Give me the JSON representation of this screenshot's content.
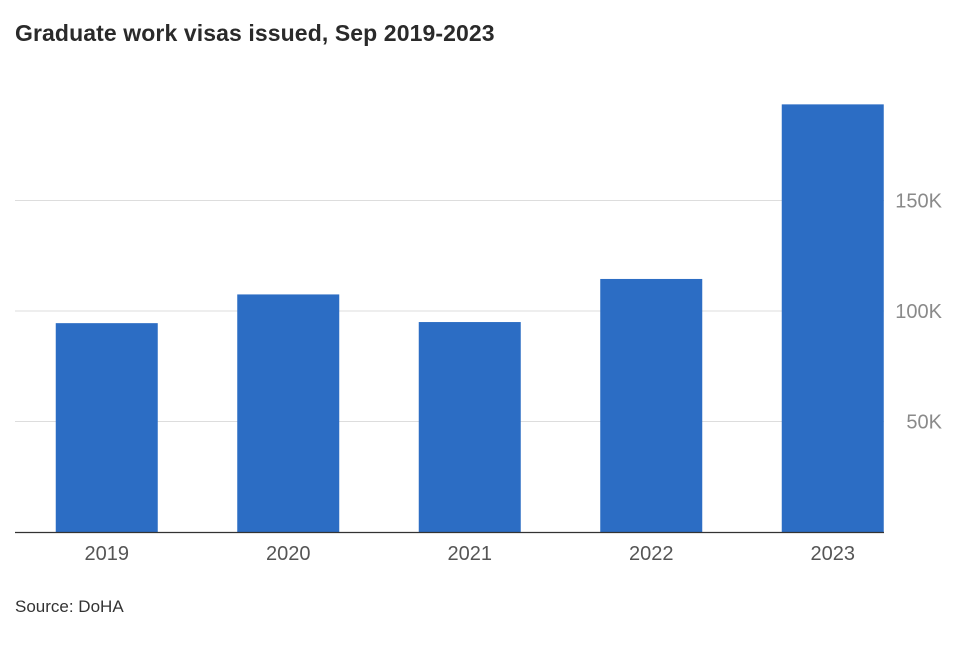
{
  "chart_data": {
    "type": "bar",
    "title": "Graduate work visas issued, Sep 2019-2023",
    "categories": [
      "2019",
      "2020",
      "2021",
      "2022",
      "2023"
    ],
    "values": [
      94500,
      107500,
      95000,
      114500,
      193500
    ],
    "ylim": [
      0,
      200000
    ],
    "yticks": [
      50000,
      100000,
      150000
    ],
    "ytick_labels": [
      "50K",
      "100K",
      "150K"
    ],
    "grid": true,
    "bar_color": "#2c6dc4",
    "source": "Source: DoHA"
  }
}
